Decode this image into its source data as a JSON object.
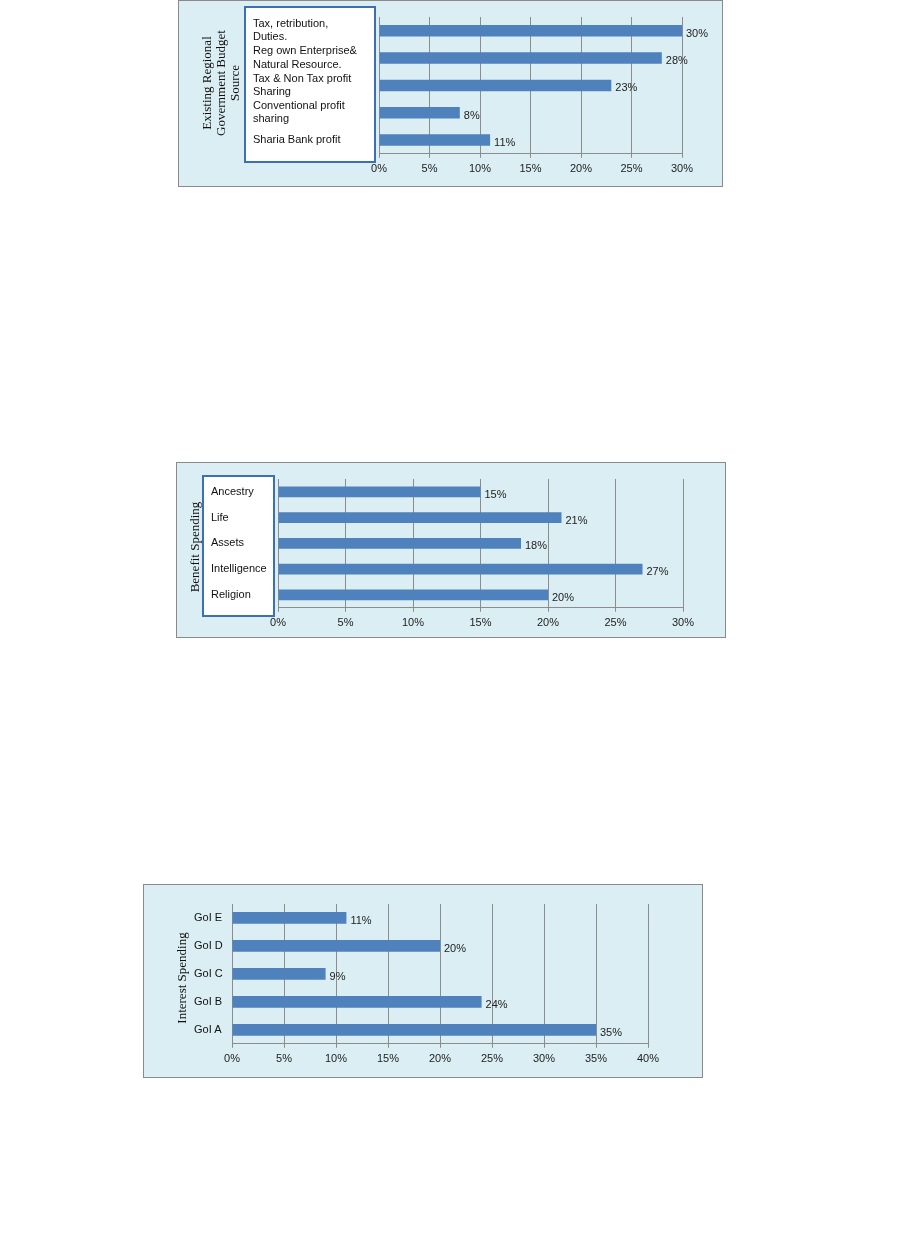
{
  "chart_data": [
    {
      "type": "bar",
      "orientation": "horizontal",
      "ylabel": "Existing Regional Government Budget Source",
      "categories": [
        "Tax, retribution, Duties.",
        "Reg own Enterprise& Natural Resource.",
        "Tax & Non Tax profit Sharing",
        "Conventional profit sharing",
        "Sharia Bank profit"
      ],
      "values": [
        30,
        28,
        23,
        8,
        11
      ],
      "value_labels": [
        "30%",
        "28%",
        "23%",
        "8%",
        "11%"
      ],
      "color": "#4f81bd",
      "xlim": [
        0,
        30
      ],
      "xticks": [
        {
          "value": 0,
          "label": "0%"
        },
        {
          "value": 5,
          "label": "5%"
        },
        {
          "value": 10,
          "label": "10%"
        },
        {
          "value": 15,
          "label": "15%"
        },
        {
          "value": 20,
          "label": "20%"
        },
        {
          "value": 25,
          "label": "25%"
        },
        {
          "value": 30,
          "label": "30%"
        }
      ],
      "grid": "x"
    },
    {
      "type": "bar",
      "orientation": "horizontal",
      "ylabel": "Benefit Spending",
      "categories": [
        "Ancestry",
        "Life",
        "Assets",
        "Intelligence",
        "Religion"
      ],
      "values": [
        15,
        21,
        18,
        27,
        20
      ],
      "value_labels": [
        "15%",
        "21%",
        "18%",
        "27%",
        "20%"
      ],
      "color": "#4f81bd",
      "xlim": [
        0,
        30
      ],
      "xticks": [
        {
          "value": 0,
          "label": "0%"
        },
        {
          "value": 5,
          "label": "5%"
        },
        {
          "value": 10,
          "label": "10%"
        },
        {
          "value": 15,
          "label": "15%"
        },
        {
          "value": 20,
          "label": "20%"
        },
        {
          "value": 25,
          "label": "25%"
        },
        {
          "value": 30,
          "label": "30%"
        }
      ],
      "grid": "x"
    },
    {
      "type": "bar",
      "orientation": "horizontal",
      "ylabel": "Interest Spending",
      "categories": [
        "GoI E",
        "GoI D",
        "GoI C",
        "GoI B",
        "GoI A"
      ],
      "values": [
        11,
        20,
        9,
        24,
        35
      ],
      "value_labels": [
        "11%",
        "20%",
        "9%",
        "24%",
        "35%"
      ],
      "color": "#4f81bd",
      "xlim": [
        0,
        40
      ],
      "xticks": [
        {
          "value": 0,
          "label": "0%"
        },
        {
          "value": 5,
          "label": "5%"
        },
        {
          "value": 10,
          "label": "10%"
        },
        {
          "value": 15,
          "label": "15%"
        },
        {
          "value": 20,
          "label": "20%"
        },
        {
          "value": 25,
          "label": "25%"
        },
        {
          "value": 30,
          "label": "30%"
        },
        {
          "value": 35,
          "label": "35%"
        },
        {
          "value": 40,
          "label": "40%"
        }
      ],
      "grid": "x"
    }
  ]
}
